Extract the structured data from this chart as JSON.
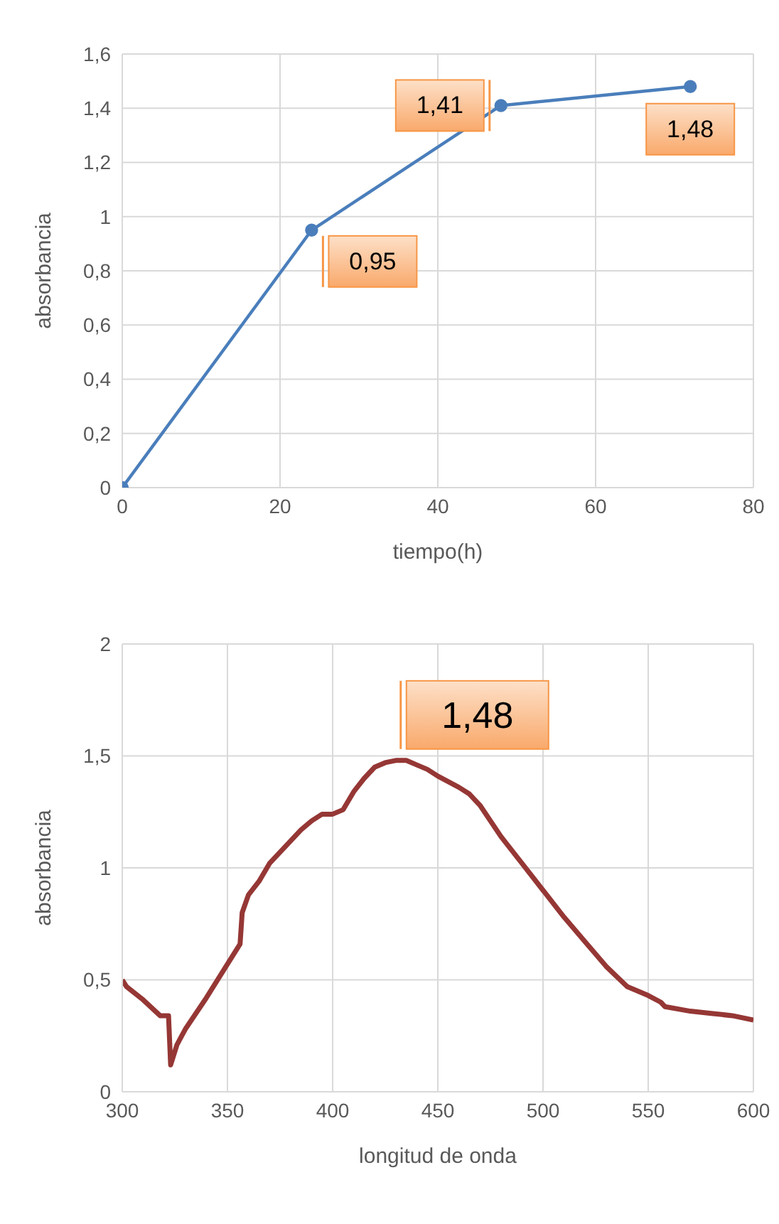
{
  "chart_data": [
    {
      "type": "line",
      "xlabel": "tiempo(h)",
      "ylabel": "absorbancia",
      "x": [
        0,
        24,
        48,
        72
      ],
      "series": [
        {
          "color": "#4a7ebb",
          "values": [
            0,
            0.95,
            1.41,
            1.48
          ],
          "value_labels": [
            null,
            "0,95",
            "1,41",
            "1,48"
          ]
        }
      ],
      "xlim": [
        0,
        80
      ],
      "xticks": [
        0,
        20,
        40,
        60,
        80
      ],
      "ylim": [
        0,
        1.6
      ],
      "yticks": [
        0,
        {
          "value": 0.2,
          "label": "0,2"
        },
        {
          "value": 0.4,
          "label": "0,4"
        },
        {
          "value": 0.6,
          "label": "0,6"
        },
        {
          "value": 0.8,
          "label": "0,8"
        },
        1,
        {
          "value": 1.2,
          "label": "1,2"
        },
        {
          "value": 1.4,
          "label": "1,4"
        },
        {
          "value": 1.6,
          "label": "1,6"
        }
      ],
      "grid": true,
      "marker": "circle",
      "legend": false
    },
    {
      "type": "line",
      "xlabel": "longitud de onda",
      "ylabel": "absorbancia",
      "x": [
        300,
        302,
        310,
        318,
        322,
        323,
        326,
        330,
        340,
        350,
        356,
        357,
        360,
        365,
        370,
        375,
        380,
        385,
        390,
        395,
        400,
        405,
        410,
        415,
        420,
        425,
        430,
        435,
        440,
        445,
        450,
        460,
        465,
        470,
        480,
        490,
        500,
        510,
        520,
        530,
        540,
        550,
        556,
        558,
        570,
        580,
        590,
        600
      ],
      "series": [
        {
          "color": "#953735",
          "values": [
            0.5,
            0.47,
            0.41,
            0.34,
            0.34,
            0.12,
            0.21,
            0.28,
            0.42,
            0.57,
            0.66,
            0.8,
            0.88,
            0.94,
            1.02,
            1.07,
            1.12,
            1.17,
            1.21,
            1.24,
            1.24,
            1.26,
            1.34,
            1.4,
            1.45,
            1.47,
            1.48,
            1.48,
            1.46,
            1.44,
            1.41,
            1.36,
            1.33,
            1.28,
            1.14,
            1.02,
            0.9,
            0.78,
            0.67,
            0.56,
            0.47,
            0.43,
            0.4,
            0.38,
            0.36,
            0.35,
            0.34,
            0.32
          ]
        }
      ],
      "annotations": [
        {
          "text": "1,48",
          "x": 431,
          "y": 1.48
        }
      ],
      "xlim": [
        300,
        600
      ],
      "xticks": [
        300,
        350,
        400,
        450,
        500,
        550,
        600
      ],
      "ylim": [
        0,
        2
      ],
      "yticks": [
        0,
        {
          "value": 0.5,
          "label": "0,5"
        },
        1,
        {
          "value": 1.5,
          "label": "1,5"
        },
        2
      ],
      "grid": true,
      "marker": "none",
      "legend": false
    }
  ]
}
